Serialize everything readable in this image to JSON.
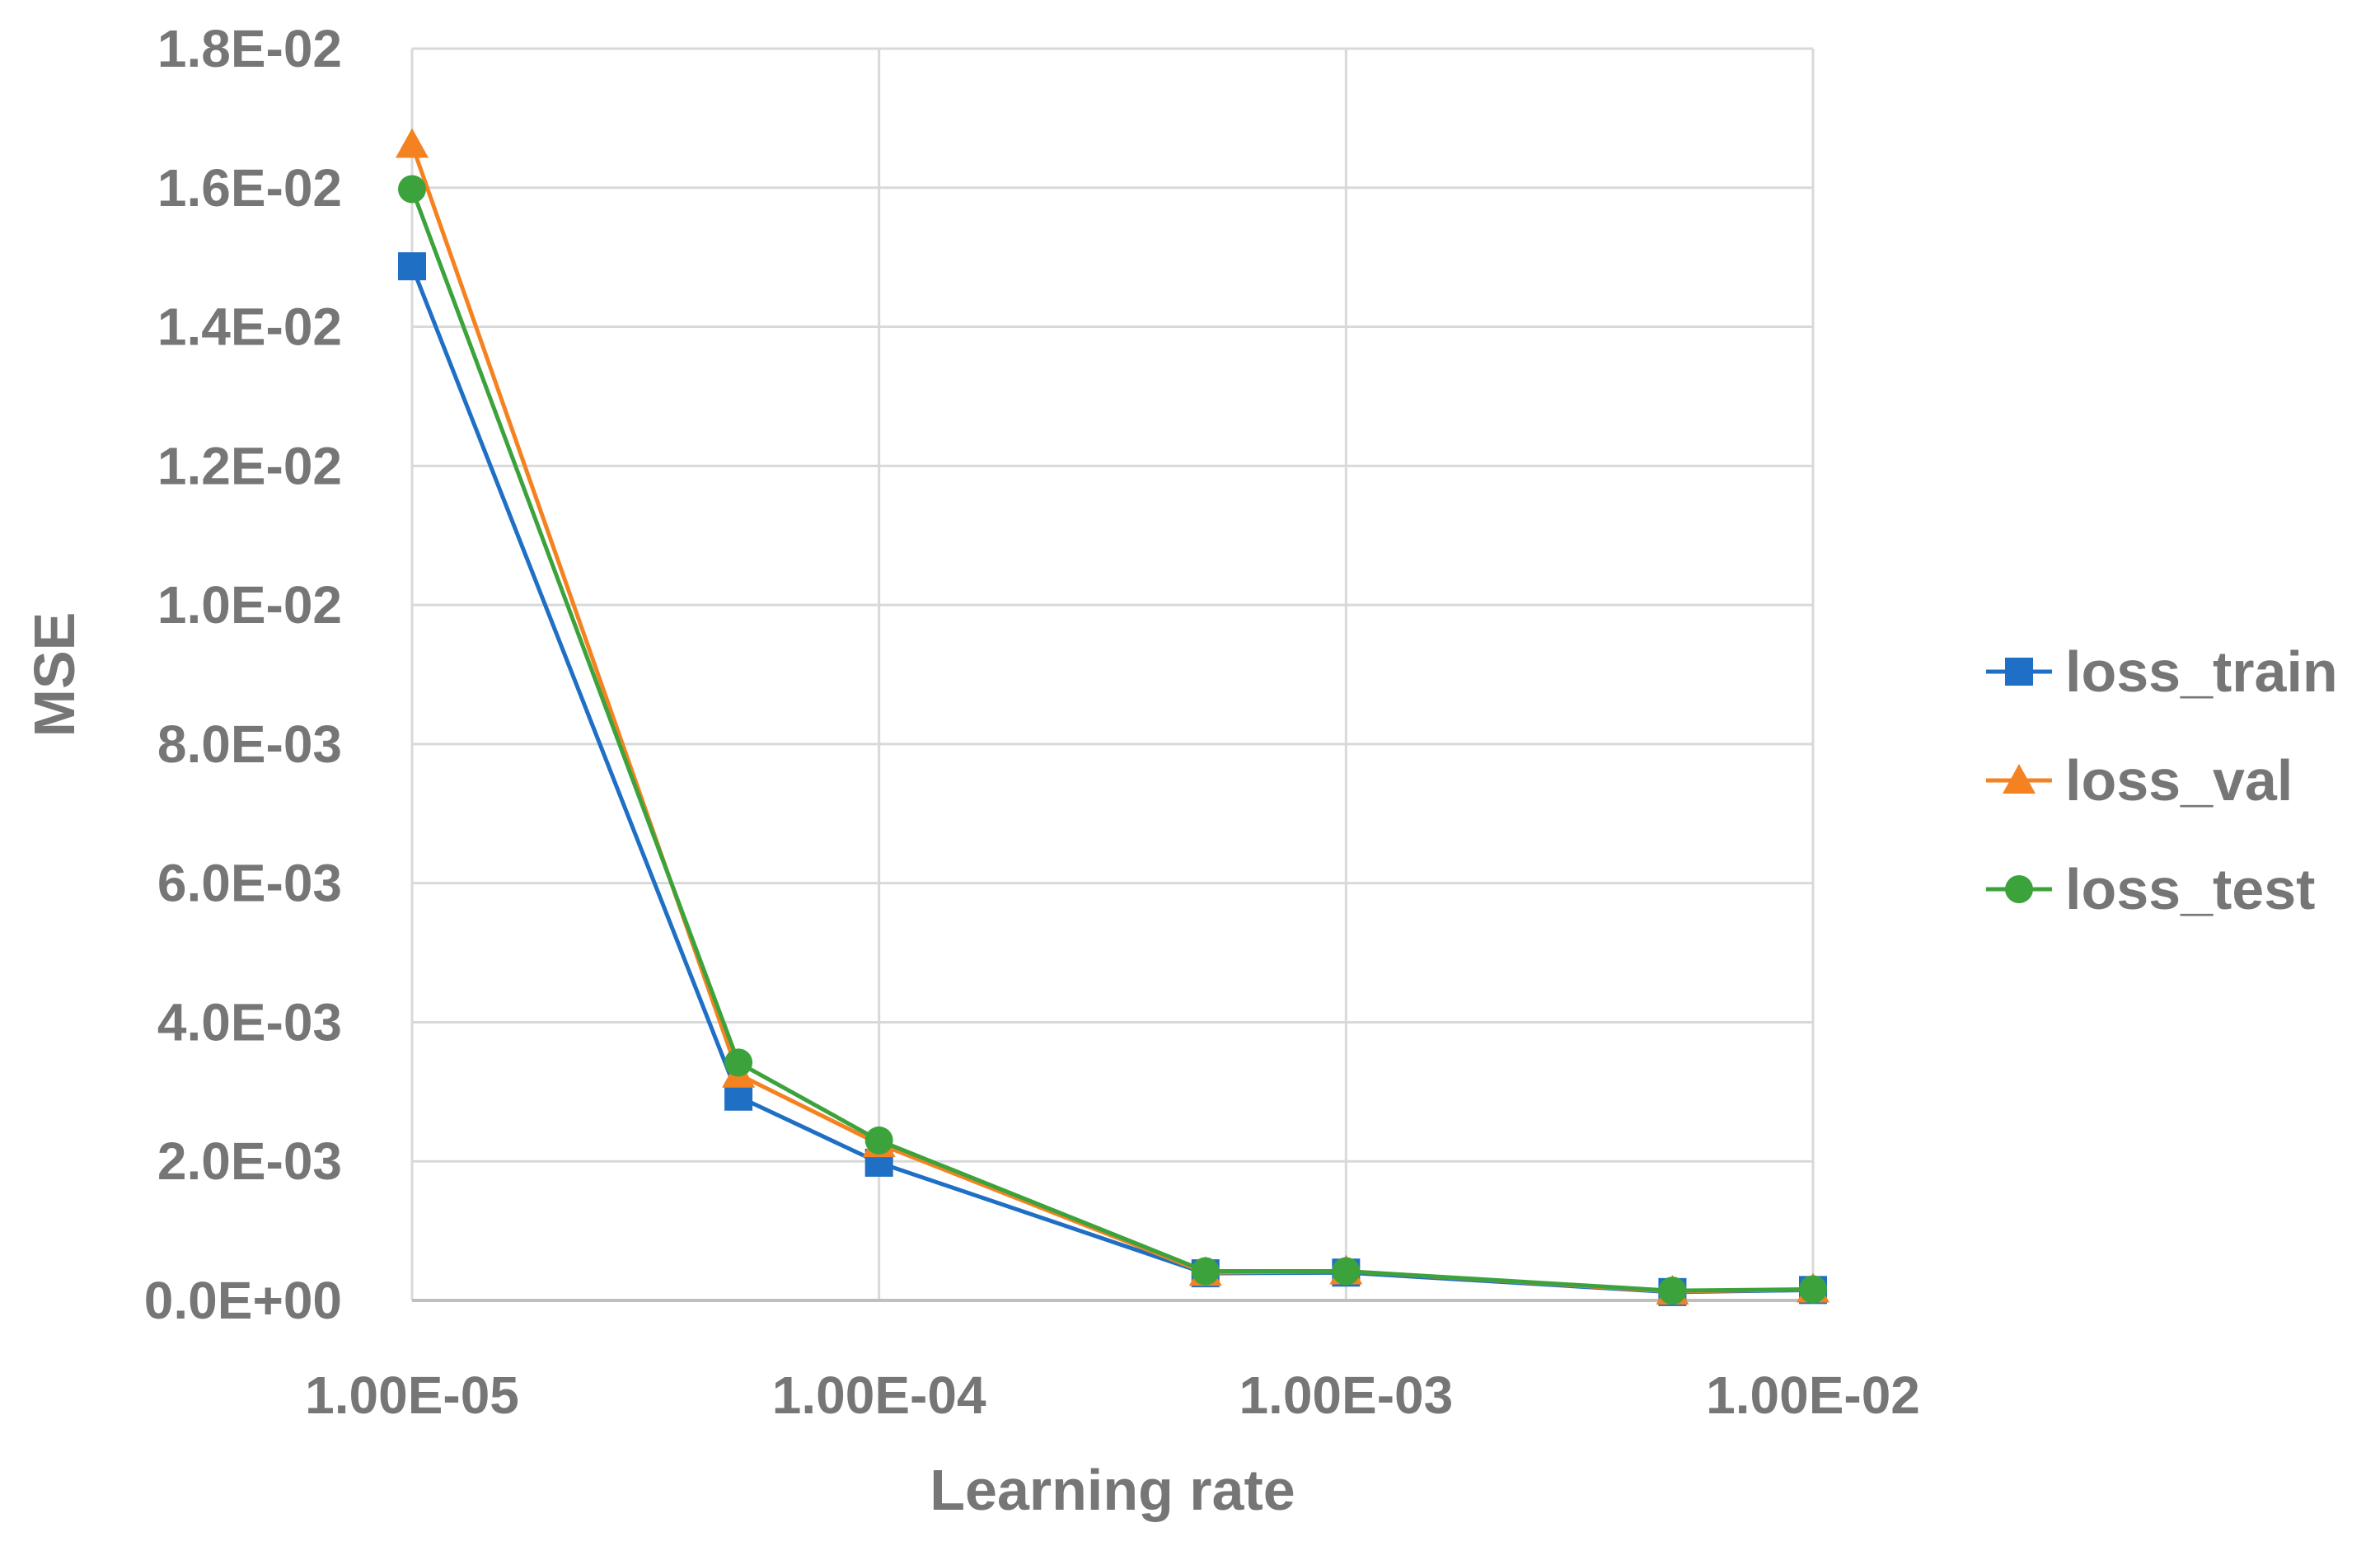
{
  "chart_data": {
    "type": "line",
    "title": "",
    "xlabel": "Learning rate",
    "ylabel": "MSE",
    "x_scale": "log",
    "x_ticks": [
      {
        "value": 1e-05,
        "label": "1.00E-05"
      },
      {
        "value": 0.0001,
        "label": "1.00E-04"
      },
      {
        "value": 0.001,
        "label": "1.00E-03"
      },
      {
        "value": 0.01,
        "label": "1.00E-02"
      }
    ],
    "y_ticks": [
      {
        "value": 0.0,
        "label": "0.0E+00"
      },
      {
        "value": 0.002,
        "label": "2.0E-03"
      },
      {
        "value": 0.004,
        "label": "4.0E-03"
      },
      {
        "value": 0.006,
        "label": "6.0E-03"
      },
      {
        "value": 0.008,
        "label": "8.0E-03"
      },
      {
        "value": 0.01,
        "label": "1.0E-02"
      },
      {
        "value": 0.012,
        "label": "1.2E-02"
      },
      {
        "value": 0.014,
        "label": "1.4E-02"
      },
      {
        "value": 0.016,
        "label": "1.6E-02"
      },
      {
        "value": 0.018,
        "label": "1.8E-02"
      }
    ],
    "xlim": [
      1e-05,
      0.01
    ],
    "ylim": [
      0,
      0.018
    ],
    "grid": true,
    "legend_position": "right",
    "x": [
      1e-05,
      5e-05,
      0.0001,
      0.0005,
      0.001,
      0.005,
      0.01
    ],
    "series": [
      {
        "name": "loss_train",
        "color": "#1f6fc5",
        "marker": "square",
        "values": [
          0.01487,
          0.00293,
          0.00198,
          0.00039,
          0.0004,
          0.00012,
          0.00015
        ]
      },
      {
        "name": "loss_val",
        "color": "#f58220",
        "marker": "triangle",
        "values": [
          0.01662,
          0.00325,
          0.00225,
          0.0004,
          0.00042,
          0.00013,
          0.00016
        ]
      },
      {
        "name": "loss_test",
        "color": "#3ca33c",
        "marker": "circle",
        "values": [
          0.01598,
          0.00342,
          0.0023,
          0.00042,
          0.00042,
          0.00014,
          0.00016
        ]
      }
    ]
  }
}
